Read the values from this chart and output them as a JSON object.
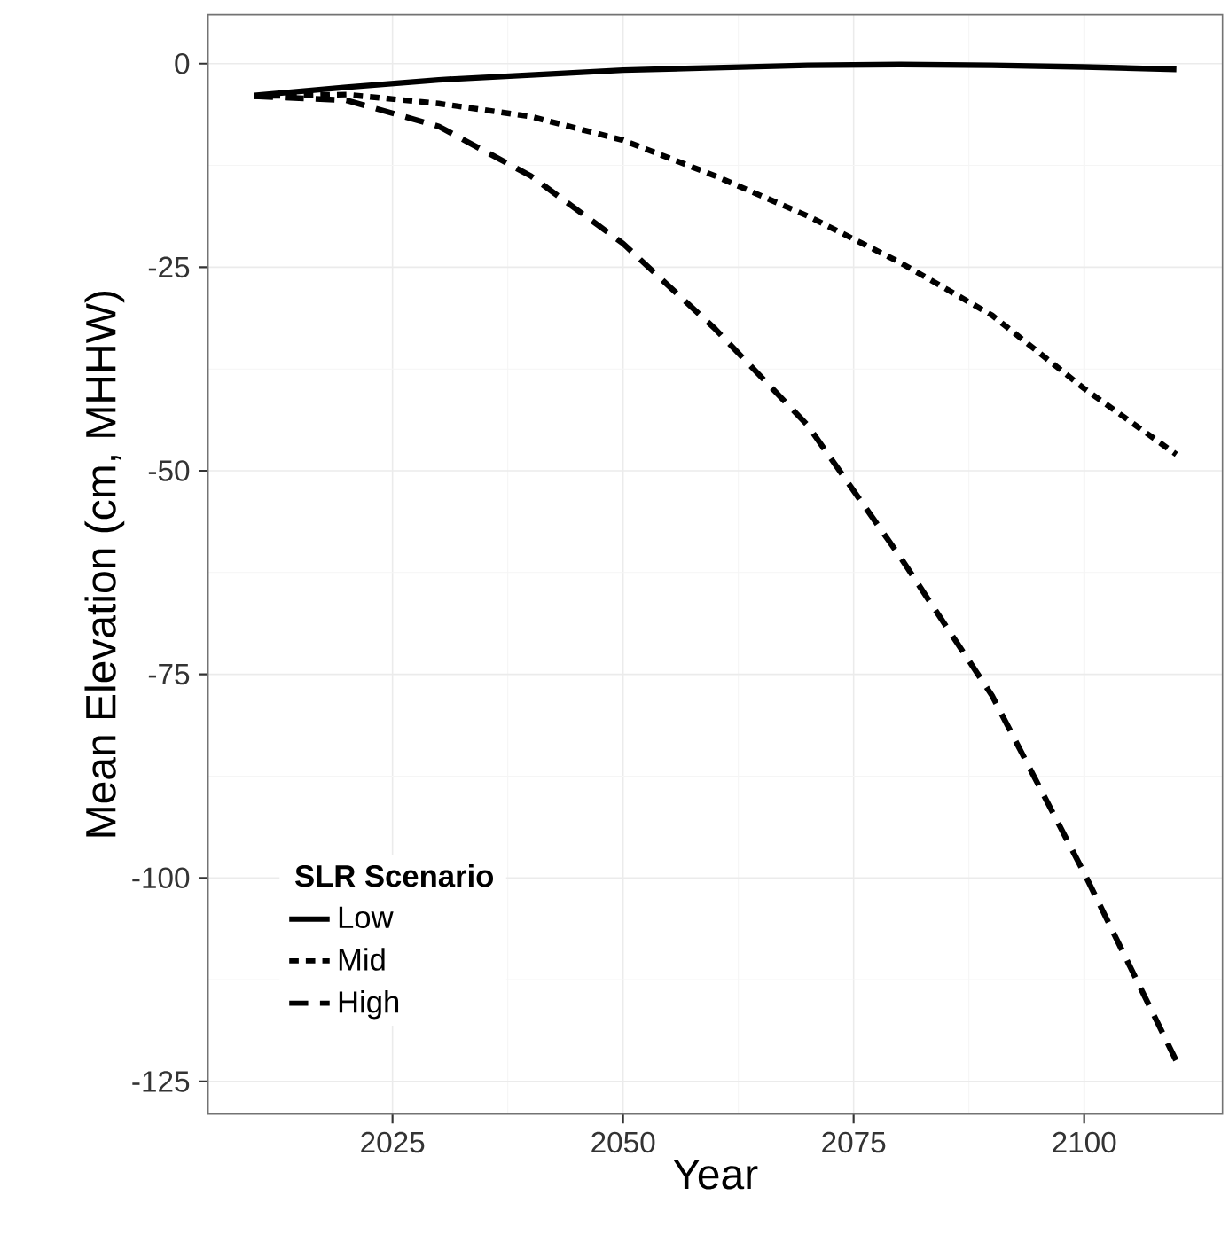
{
  "chart_data": {
    "type": "line",
    "xlabel": "Year",
    "ylabel": "Mean Elevation (cm, MHHW)",
    "legend_title": "SLR Scenario",
    "x": [
      2010,
      2020,
      2030,
      2040,
      2050,
      2060,
      2070,
      2080,
      2090,
      2100,
      2110
    ],
    "series": [
      {
        "name": "Low",
        "color": "#000000",
        "line_style": "solid",
        "values": [
          -3.9,
          -2.9,
          -2.0,
          -1.4,
          -0.8,
          -0.5,
          -0.2,
          -0.1,
          -0.2,
          -0.4,
          -0.7
        ]
      },
      {
        "name": "Mid",
        "color": "#000000",
        "line_style": "dotted",
        "values": [
          -4.0,
          -3.8,
          -4.9,
          -6.5,
          -9.4,
          -13.8,
          -18.7,
          -24.4,
          -30.9,
          -39.9,
          -48.0
        ]
      },
      {
        "name": "High",
        "color": "#000000",
        "line_style": "dashed",
        "values": [
          -4.0,
          -4.5,
          -7.7,
          -13.8,
          -22.1,
          -32.6,
          -44.4,
          -60.5,
          -77.6,
          -99.4,
          -122.5
        ]
      }
    ],
    "xlim": [
      2005,
      2115
    ],
    "ylim": [
      -129,
      6
    ],
    "xticks": [
      2025,
      2050,
      2075,
      2100
    ],
    "yticks": [
      -125,
      -100,
      -75,
      -50,
      -25,
      0
    ],
    "grid": true,
    "legend": "bottom left",
    "marker": "none"
  }
}
